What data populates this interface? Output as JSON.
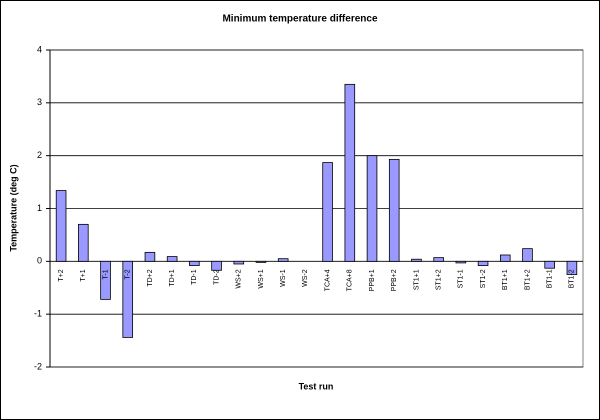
{
  "chart_data": {
    "type": "bar",
    "title": "Minimum temperature difference",
    "x_label": "Test run",
    "y_label": "Temperature (deg C)",
    "categories": [
      "T+2",
      "T+1",
      "T-1",
      "T-2",
      "TD+2",
      "TD+1",
      "TD-1",
      "TD-2",
      "WS+2",
      "WS+1",
      "WS-1",
      "WS-2",
      "TCA+4",
      "TCA+8",
      "PPB+1",
      "PPB+2",
      "ST1+1",
      "ST1+2",
      "ST1-1",
      "ST1-2",
      "BT1+1",
      "BT1+2",
      "BT1-1",
      "BT1-2"
    ],
    "values": [
      1.34,
      0.7,
      -0.72,
      -1.44,
      0.17,
      0.09,
      -0.08,
      -0.17,
      -0.05,
      -0.02,
      0.05,
      0,
      1.87,
      3.35,
      2.0,
      1.93,
      0.04,
      0.07,
      -0.03,
      -0.08,
      0.12,
      0.24,
      -0.13,
      -0.25
    ],
    "color": "#9999ff",
    "ylim": [
      -2,
      4
    ],
    "yticks": [
      -2,
      -1,
      0,
      1,
      2,
      3,
      4
    ],
    "grid": true
  }
}
